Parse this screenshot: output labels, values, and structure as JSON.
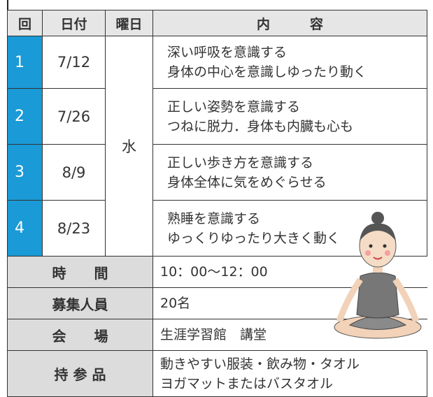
{
  "header": {
    "columns": [
      "回",
      "日付",
      "曜日",
      "内　　　容"
    ]
  },
  "weekday": "水",
  "rows": [
    {
      "number": "1",
      "date": "7/12",
      "content": [
        "深い呼吸を意識する",
        "身体の中心を意識しゆったり動く"
      ]
    },
    {
      "number": "2",
      "date": "7/26",
      "content": [
        "正しい姿勢を意識する",
        "つねに脱力．身体も内臓も心も"
      ]
    },
    {
      "number": "3",
      "date": "8/9",
      "content": [
        "正しい歩き方を意識する",
        "身体全体に気をめぐらせる"
      ]
    },
    {
      "number": "4",
      "date": "8/23",
      "content": [
        "熟睡を意識する",
        "ゆっくりゆったり大きく動く"
      ]
    }
  ],
  "info": [
    {
      "label": "時　　間",
      "value": [
        "10：00～12：00"
      ]
    },
    {
      "label": "募集人員",
      "value": [
        "20名"
      ]
    },
    {
      "label": "会　　場",
      "value": [
        "生涯学習館　講堂"
      ]
    },
    {
      "label": "持 参 品",
      "value": [
        "動きやすい服装・飲み物・タオル",
        "ヨガマットまたはバスタオル"
      ]
    }
  ]
}
